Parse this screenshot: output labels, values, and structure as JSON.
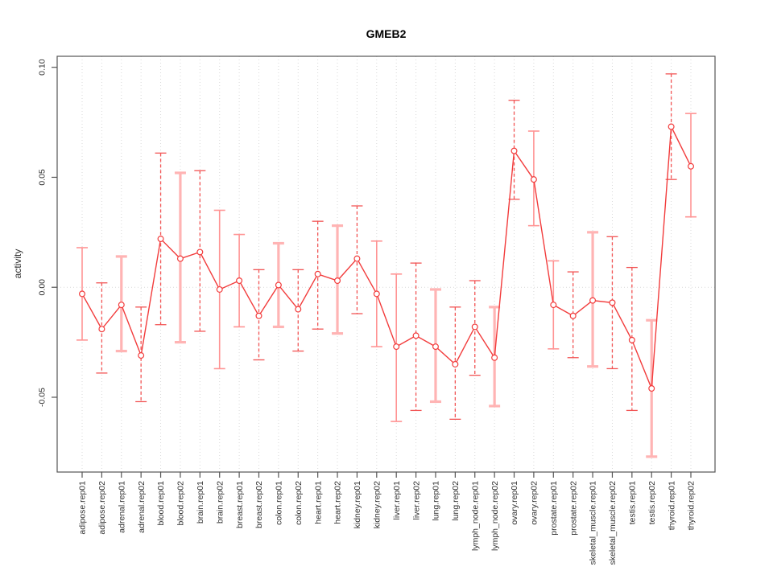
{
  "page": {
    "background": "#ffffff"
  },
  "chart_data": {
    "type": "line",
    "title": "GMEB2",
    "xlabel": "",
    "ylabel": "activity",
    "legend": "none",
    "grid": {
      "vertical": "dotted line at every category",
      "horizontal": "dotted line at y = 0 only"
    },
    "ylim": [
      -0.084,
      0.105
    ],
    "yticks": [
      0.1,
      0.05,
      0.0,
      -0.05
    ],
    "ytick_labels": [
      "0.10",
      "0.05",
      "0.00",
      "-0.05"
    ],
    "categories": [
      "adipose.rep01",
      "adipose.rep02",
      "adrenal.rep01",
      "adrenal.rep02",
      "blood.rep01",
      "blood.rep02",
      "brain.rep01",
      "brain.rep02",
      "breast.rep01",
      "breast.rep02",
      "colon.rep01",
      "colon.rep02",
      "heart.rep01",
      "heart.rep02",
      "kidney.rep01",
      "kidney.rep02",
      "liver.rep01",
      "liver.rep02",
      "lung.rep01",
      "lung.rep02",
      "lymph_node.rep01",
      "lymph_node.rep02",
      "ovary.rep01",
      "ovary.rep02",
      "prostate.rep01",
      "prostate.rep02",
      "skeletal_muscle.rep01",
      "skeletal_muscle.rep02",
      "testis.rep01",
      "testis.rep02",
      "thyroid.rep01",
      "thyroid.rep02"
    ],
    "series": [
      {
        "name": "activity",
        "marker": "open-circle",
        "values": [
          -0.003,
          -0.019,
          -0.008,
          -0.031,
          0.022,
          0.013,
          0.016,
          -0.001,
          0.003,
          -0.013,
          0.001,
          -0.01,
          0.006,
          0.003,
          0.013,
          -0.003,
          -0.027,
          -0.022,
          -0.027,
          -0.035,
          -0.018,
          -0.032,
          0.062,
          0.049,
          -0.008,
          -0.013,
          -0.006,
          -0.007,
          -0.024,
          -0.046,
          0.073,
          0.055
        ],
        "error_high": [
          0.018,
          0.002,
          0.014,
          -0.009,
          0.061,
          0.052,
          0.053,
          0.035,
          0.024,
          0.008,
          0.02,
          0.008,
          0.03,
          0.028,
          0.037,
          0.021,
          0.006,
          0.011,
          -0.001,
          -0.009,
          0.003,
          -0.009,
          0.085,
          0.071,
          0.012,
          0.007,
          0.025,
          0.023,
          0.009,
          -0.015,
          0.097,
          0.079
        ],
        "error_low": [
          -0.024,
          -0.039,
          -0.029,
          -0.052,
          -0.017,
          -0.025,
          -0.02,
          -0.037,
          -0.018,
          -0.033,
          -0.018,
          -0.029,
          -0.019,
          -0.021,
          -0.012,
          -0.027,
          -0.061,
          -0.056,
          -0.052,
          -0.06,
          -0.04,
          -0.054,
          0.04,
          0.028,
          -0.028,
          -0.032,
          -0.036,
          -0.037,
          -0.056,
          -0.077,
          0.049,
          0.032
        ],
        "bar_styles": [
          "solid_thin",
          "dashed",
          "solid_thick",
          "dashed",
          "dashed",
          "solid_thick",
          "dashed",
          "solid_thin",
          "solid_thin",
          "dashed",
          "solid_thick",
          "dashed",
          "dashed",
          "solid_thick",
          "dashed",
          "solid_thin",
          "solid_thin",
          "dashed",
          "solid_thick",
          "dashed",
          "dashed",
          "solid_thick",
          "dashed",
          "solid_thin",
          "solid_thin",
          "dashed",
          "solid_thick",
          "dashed",
          "dashed",
          "solid_thick",
          "dashed",
          "solid_thin"
        ]
      }
    ],
    "colors": {
      "line": "#f23c3c",
      "marker_stroke": "#f23c3c",
      "marker_fill": "#ffffff",
      "errorbar_dashed": "#f25454",
      "errorbar_solid_thin": "#ff9494",
      "errorbar_solid_thick": "#ffb4b4",
      "grid": "#d9d9d9",
      "axis": "#555555",
      "text": "#303030"
    }
  }
}
